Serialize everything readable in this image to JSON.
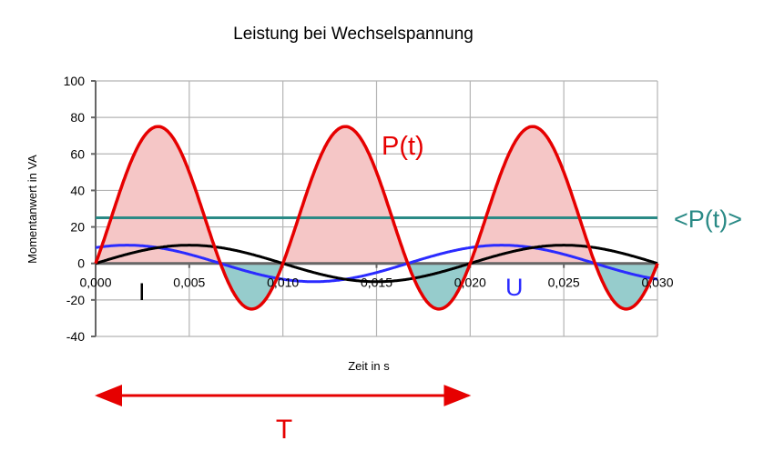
{
  "chart_data": {
    "type": "line",
    "title": "Leistung bei Wechselspannung",
    "xlabel": "Zeit in s",
    "ylabel": "Momentanwert in VA",
    "xlim": [
      0,
      0.03
    ],
    "ylim": [
      -40,
      100
    ],
    "x_ticks": [
      "0,000",
      "0,005",
      "0,010",
      "0,015",
      "0,020",
      "0,025",
      "0,030"
    ],
    "y_ticks": [
      "-40",
      "-20",
      "0",
      "20",
      "40",
      "60",
      "80",
      "100"
    ],
    "grid": true,
    "series": [
      {
        "name": "U",
        "kind": "sine",
        "amplitude": 10,
        "frequency_hz": 50,
        "phase_deg": 60,
        "color": "#2b2bff"
      },
      {
        "name": "I",
        "kind": "sine",
        "amplitude": 10,
        "frequency_hz": 50,
        "phase_deg": 0,
        "color": "#000000"
      },
      {
        "name": "P(t)",
        "kind": "product U·I",
        "max": 75,
        "min": -25,
        "color": "#e60000",
        "fill_positive": "#f5c6c6",
        "fill_negative": "#96cccc"
      },
      {
        "name": "<P(t)>",
        "kind": "constant",
        "value": 25,
        "color": "#2a8a86"
      }
    ],
    "annotations": {
      "period_label": "T",
      "period_arrow": [
        0,
        0.02
      ]
    }
  }
}
